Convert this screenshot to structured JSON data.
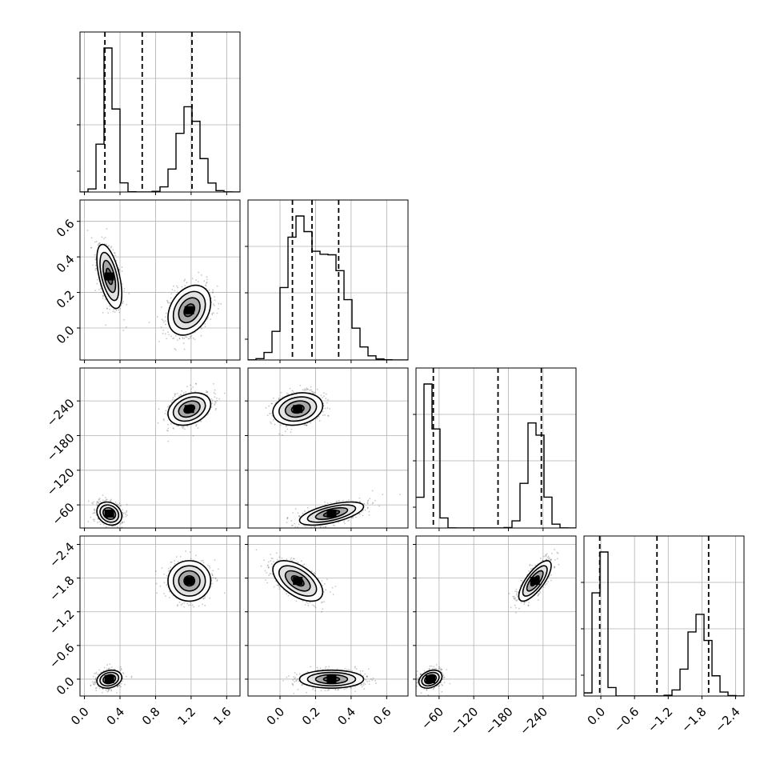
{
  "chart_data": {
    "type": "scatter",
    "subtype": "corner-plot",
    "n_params": 4,
    "grid": true,
    "param_labels": [
      "",
      "",
      "",
      ""
    ],
    "ranges": [
      [
        -0.05,
        1.75
      ],
      [
        -0.18,
        0.72
      ],
      [
        -20,
        -297
      ],
      [
        0.3,
        -2.55
      ]
    ],
    "ticks": [
      {
        "values": [
          0.0,
          0.4,
          0.8,
          1.2,
          1.6
        ],
        "labels": [
          "0.0",
          "0.4",
          "0.8",
          "1.2",
          "1.6"
        ]
      },
      {
        "values": [
          0.0,
          0.2,
          0.4,
          0.6
        ],
        "labels": [
          "0.0",
          "0.2",
          "0.4",
          "0.6"
        ]
      },
      {
        "values": [
          -240,
          -180,
          -120,
          -60
        ],
        "labels": [
          "−240",
          "−180",
          "−120",
          "−60"
        ]
      },
      {
        "values": [
          -2.4,
          -1.8,
          -1.2,
          -0.6,
          0.0
        ],
        "labels": [
          "−2.4",
          "−1.8",
          "−1.2",
          "−0.6",
          "0.0"
        ]
      }
    ],
    "quantiles": [
      [
        0.23,
        0.65,
        1.21
      ],
      [
        0.07,
        0.18,
        0.33
      ],
      [
        -237,
        -162,
        -50
      ],
      [
        -1.92,
        -1.0,
        0.02
      ]
    ],
    "modes": [
      {
        "weight": 0.5,
        "mean": [
          0.28,
          0.29,
          -45,
          0.0
        ],
        "sd": [
          0.07,
          0.09,
          10,
          0.08
        ]
      },
      {
        "weight": 0.5,
        "mean": [
          1.18,
          0.1,
          -226,
          -1.75
        ],
        "sd": [
          0.12,
          0.07,
          14,
          0.18
        ]
      }
    ],
    "correlations": [
      {
        "pair": [
          0,
          1
        ],
        "values": [
          -0.55,
          0.3
        ]
      },
      {
        "pair": [
          0,
          2
        ],
        "values": [
          0.2,
          -0.3
        ]
      },
      {
        "pair": [
          1,
          2
        ],
        "values": [
          -0.6,
          -0.2
        ]
      },
      {
        "pair": [
          0,
          3
        ],
        "values": [
          -0.2,
          0.0
        ]
      },
      {
        "pair": [
          1,
          3
        ],
        "values": [
          0.0,
          0.55
        ]
      },
      {
        "pair": [
          2,
          3
        ],
        "values": [
          0.3,
          0.75
        ]
      }
    ],
    "hist_bins": 20,
    "contour_levels": [
      0.12,
      0.39,
      0.68,
      0.86
    ]
  }
}
